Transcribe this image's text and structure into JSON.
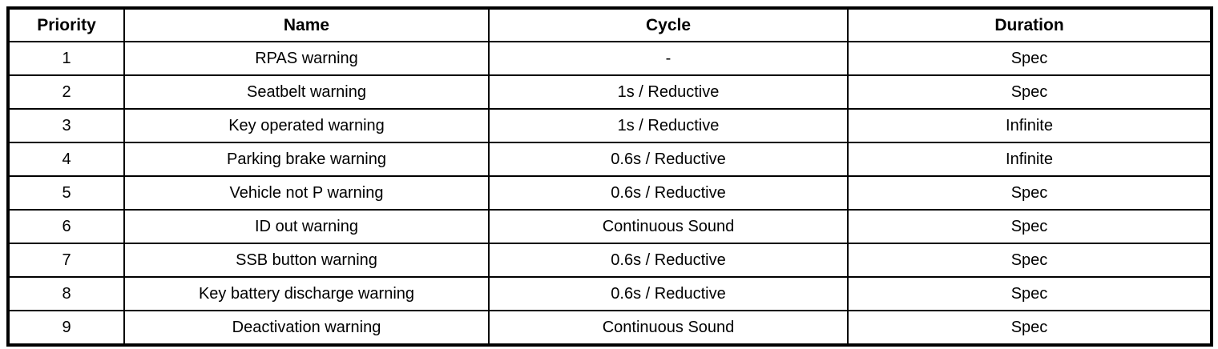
{
  "table": {
    "headers": {
      "priority": "Priority",
      "name": "Name",
      "cycle": "Cycle",
      "duration": "Duration"
    },
    "rows": [
      {
        "priority": "1",
        "name": "RPAS warning",
        "cycle": "-",
        "duration": "Spec"
      },
      {
        "priority": "2",
        "name": "Seatbelt warning",
        "cycle": "1s / Reductive",
        "duration": "Spec"
      },
      {
        "priority": "3",
        "name": "Key operated warning",
        "cycle": "1s / Reductive",
        "duration": "Infinite"
      },
      {
        "priority": "4",
        "name": "Parking brake warning",
        "cycle": "0.6s / Reductive",
        "duration": "Infinite"
      },
      {
        "priority": "5",
        "name": "Vehicle not P warning",
        "cycle": "0.6s / Reductive",
        "duration": "Spec"
      },
      {
        "priority": "6",
        "name": "ID out warning",
        "cycle": "Continuous Sound",
        "duration": "Spec"
      },
      {
        "priority": "7",
        "name": "SSB button warning",
        "cycle": "0.6s / Reductive",
        "duration": "Spec"
      },
      {
        "priority": "8",
        "name": "Key battery discharge warning",
        "cycle": "0.6s / Reductive",
        "duration": "Spec"
      },
      {
        "priority": "9",
        "name": "Deactivation warning",
        "cycle": "Continuous Sound",
        "duration": "Spec"
      }
    ],
    "colors": {
      "border": "#000000",
      "text": "#000000",
      "background": "#ffffff"
    }
  }
}
